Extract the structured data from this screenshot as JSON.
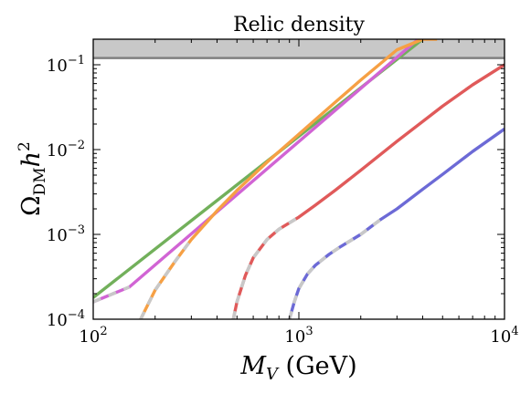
{
  "chart_data": {
    "type": "line",
    "title": "Relic density",
    "xlabel": {
      "base": "M",
      "sub": "V",
      "rest": " (GeV)"
    },
    "ylabel": {
      "base": "Ω",
      "sub": "DM",
      "rest": "h",
      "sup": "2"
    },
    "xscale": "log",
    "yscale": "log",
    "xlim": [
      100,
      10000
    ],
    "ylim": [
      0.0001,
      0.2
    ],
    "x_ticks": [
      {
        "base": "10",
        "exp": "2"
      },
      {
        "base": "10",
        "exp": "3"
      },
      {
        "base": "10",
        "exp": "4"
      }
    ],
    "y_ticks": [
      {
        "base": "10",
        "exp": "−4"
      },
      {
        "base": "10",
        "exp": "−3"
      },
      {
        "base": "10",
        "exp": "−2"
      },
      {
        "base": "10",
        "exp": "−1"
      }
    ],
    "excluded_band": {
      "from": 0.12,
      "to": 0.2,
      "line": 0.12,
      "fill_color": "#c8c8c8",
      "line_color": "#808080"
    },
    "dash_color": "#c8c8c8",
    "grid": false,
    "series": [
      {
        "color": "#72b05b",
        "x": [
          100,
          4000
        ],
        "y": [
          0.00018,
          0.2
        ]
      },
      {
        "color": "#d164d4",
        "x": [
          100,
          150,
          3800
        ],
        "y": [
          0.00016,
          0.00024,
          0.2
        ],
        "dashed_until": 150
      },
      {
        "color": "#f6a044",
        "x": [
          170,
          200,
          250,
          300,
          400,
          500,
          700,
          1000,
          1500,
          2000,
          3000,
          4000,
          4700
        ],
        "y": [
          0.0001,
          0.00022,
          0.00048,
          0.00087,
          0.0019,
          0.0033,
          0.0071,
          0.0152,
          0.036,
          0.066,
          0.15,
          0.2,
          0.2
        ],
        "dashed_until": 300
      },
      {
        "color": "#e05a5a",
        "x": [
          480,
          500,
          550,
          600,
          700,
          800,
          900,
          1000,
          1200,
          1500,
          2000,
          3000,
          5000,
          7000,
          10000
        ],
        "y": [
          0.0001,
          0.00016,
          0.00033,
          0.00053,
          0.00087,
          0.00115,
          0.00137,
          0.0016,
          0.0022,
          0.0033,
          0.0057,
          0.0125,
          0.0325,
          0.058,
          0.1
        ],
        "dashed_until": 1000
      },
      {
        "color": "#6c6ad6",
        "x": [
          900,
          950,
          1000,
          1100,
          1200,
          1400,
          1600,
          2000,
          2500,
          3000,
          4000,
          5000,
          7000,
          10000
        ],
        "y": [
          0.0001,
          0.00016,
          0.00023,
          0.00034,
          0.00043,
          0.00058,
          0.00072,
          0.001,
          0.0015,
          0.002,
          0.0034,
          0.0051,
          0.0095,
          0.0175
        ],
        "dashed_until": 2500
      }
    ]
  }
}
